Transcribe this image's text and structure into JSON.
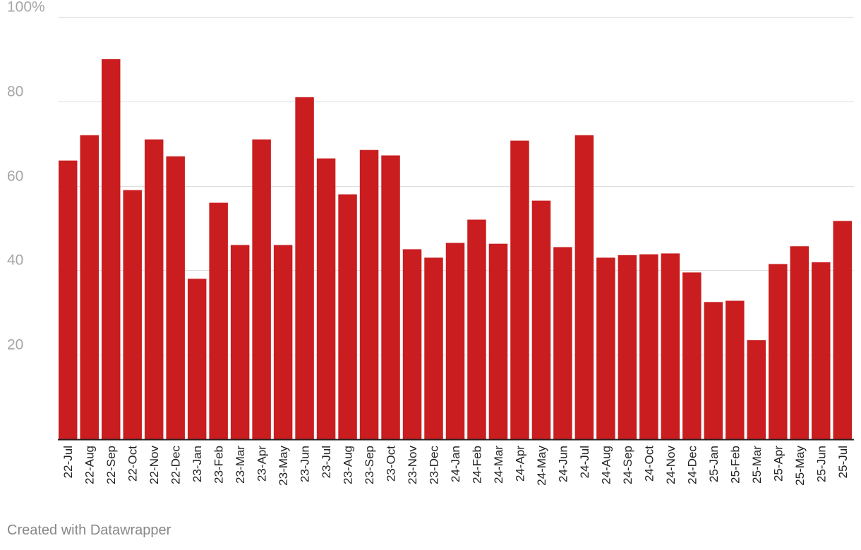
{
  "chart_data": {
    "type": "bar",
    "title": "",
    "xlabel": "",
    "ylabel": "",
    "ylim": [
      0,
      100
    ],
    "y_ticks": [
      20,
      40,
      60,
      80,
      100
    ],
    "y_tick_labels": [
      "20",
      "40",
      "60",
      "80",
      "100%"
    ],
    "grid": true,
    "bar_color": "#c91d1f",
    "categories": [
      "22-Jul",
      "22-Aug",
      "22-Sep",
      "22-Oct",
      "22-Nov",
      "22-Dec",
      "23-Jan",
      "23-Feb",
      "23-Mar",
      "23-Apr",
      "23-May",
      "23-Jun",
      "23-Jul",
      "23-Aug",
      "23-Sep",
      "23-Oct",
      "23-Nov",
      "23-Dec",
      "24-Jan",
      "24-Feb",
      "24-Mar",
      "24-Apr",
      "24-May",
      "24-Jun",
      "24-Jul",
      "24-Aug",
      "24-Sep",
      "24-Oct",
      "24-Nov",
      "24-Dec",
      "25-Jan",
      "25-Feb",
      "25-Mar",
      "25-Apr",
      "25-May",
      "25-Jun",
      "25-Jul"
    ],
    "values": [
      66,
      72,
      90,
      59,
      71,
      67,
      38,
      56,
      46,
      71,
      46,
      81,
      66.5,
      58,
      68.5,
      67.2,
      45,
      43,
      46.5,
      52,
      46.3,
      70.7,
      56.5,
      45.5,
      72,
      43,
      43.6,
      43.8,
      44,
      39.5,
      32.5,
      32.8,
      23.5,
      41.5,
      45.7,
      41.9,
      51.7
    ]
  },
  "credit": "Created with Datawrapper"
}
